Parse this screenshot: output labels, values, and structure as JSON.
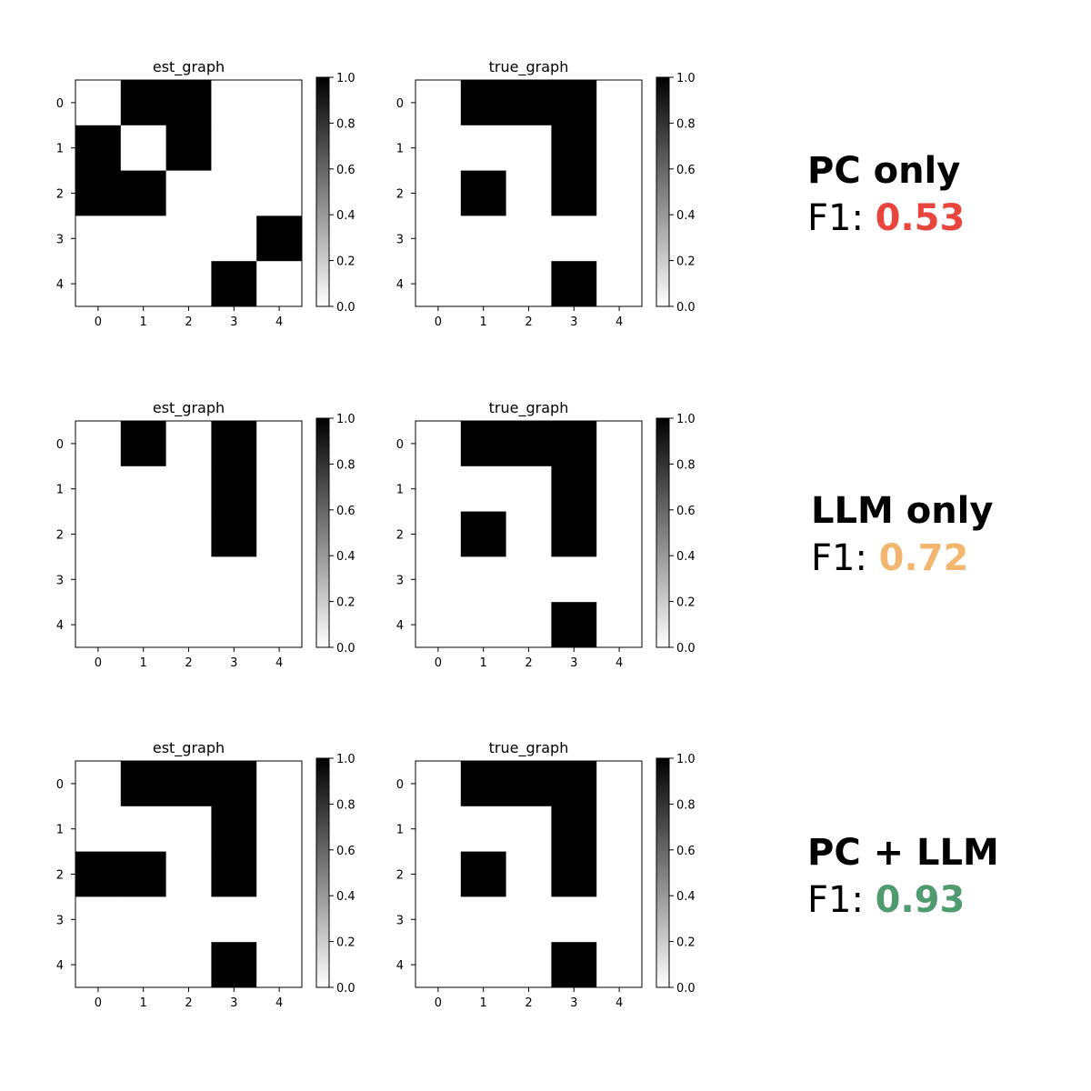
{
  "chart_data": [
    {
      "type": "heatmap",
      "title": "est_graph",
      "row": "PC only",
      "x_ticks": [
        "0",
        "1",
        "2",
        "3",
        "4"
      ],
      "y_ticks": [
        "0",
        "1",
        "2",
        "3",
        "4"
      ],
      "values": [
        [
          0,
          1,
          1,
          0,
          0
        ],
        [
          1,
          0,
          1,
          0,
          0
        ],
        [
          1,
          1,
          0,
          0,
          0
        ],
        [
          0,
          0,
          0,
          0,
          1
        ],
        [
          0,
          0,
          0,
          1,
          0
        ]
      ],
      "colorbar": {
        "min": 0.0,
        "max": 1.0,
        "ticks": [
          "0.0",
          "0.2",
          "0.4",
          "0.6",
          "0.8",
          "1.0"
        ],
        "colormap": "gray_r"
      }
    },
    {
      "type": "heatmap",
      "title": "true_graph",
      "row": "PC only",
      "x_ticks": [
        "0",
        "1",
        "2",
        "3",
        "4"
      ],
      "y_ticks": [
        "0",
        "1",
        "2",
        "3",
        "4"
      ],
      "values": [
        [
          0,
          1,
          1,
          1,
          0
        ],
        [
          0,
          0,
          0,
          1,
          0
        ],
        [
          0,
          1,
          0,
          1,
          0
        ],
        [
          0,
          0,
          0,
          0,
          0
        ],
        [
          0,
          0,
          0,
          1,
          0
        ]
      ],
      "colorbar": {
        "min": 0.0,
        "max": 1.0,
        "ticks": [
          "0.0",
          "0.2",
          "0.4",
          "0.6",
          "0.8",
          "1.0"
        ],
        "colormap": "gray_r"
      }
    },
    {
      "type": "heatmap",
      "title": "est_graph",
      "row": "LLM only",
      "x_ticks": [
        "0",
        "1",
        "2",
        "3",
        "4"
      ],
      "y_ticks": [
        "0",
        "1",
        "2",
        "3",
        "4"
      ],
      "values": [
        [
          0,
          1,
          0,
          1,
          0
        ],
        [
          0,
          0,
          0,
          1,
          0
        ],
        [
          0,
          0,
          0,
          1,
          0
        ],
        [
          0,
          0,
          0,
          0,
          0
        ],
        [
          0,
          0,
          0,
          0,
          0
        ]
      ],
      "colorbar": {
        "min": 0.0,
        "max": 1.0,
        "ticks": [
          "0.0",
          "0.2",
          "0.4",
          "0.6",
          "0.8",
          "1.0"
        ],
        "colormap": "gray_r"
      }
    },
    {
      "type": "heatmap",
      "title": "true_graph",
      "row": "LLM only",
      "x_ticks": [
        "0",
        "1",
        "2",
        "3",
        "4"
      ],
      "y_ticks": [
        "0",
        "1",
        "2",
        "3",
        "4"
      ],
      "values": [
        [
          0,
          1,
          1,
          1,
          0
        ],
        [
          0,
          0,
          0,
          1,
          0
        ],
        [
          0,
          1,
          0,
          1,
          0
        ],
        [
          0,
          0,
          0,
          0,
          0
        ],
        [
          0,
          0,
          0,
          1,
          0
        ]
      ],
      "colorbar": {
        "min": 0.0,
        "max": 1.0,
        "ticks": [
          "0.0",
          "0.2",
          "0.4",
          "0.6",
          "0.8",
          "1.0"
        ],
        "colormap": "gray_r"
      }
    },
    {
      "type": "heatmap",
      "title": "est_graph",
      "row": "PC + LLM",
      "x_ticks": [
        "0",
        "1",
        "2",
        "3",
        "4"
      ],
      "y_ticks": [
        "0",
        "1",
        "2",
        "3",
        "4"
      ],
      "values": [
        [
          0,
          1,
          1,
          1,
          0
        ],
        [
          0,
          0,
          0,
          1,
          0
        ],
        [
          1,
          1,
          0,
          1,
          0
        ],
        [
          0,
          0,
          0,
          0,
          0
        ],
        [
          0,
          0,
          0,
          1,
          0
        ]
      ],
      "colorbar": {
        "min": 0.0,
        "max": 1.0,
        "ticks": [
          "0.0",
          "0.2",
          "0.4",
          "0.6",
          "0.8",
          "1.0"
        ],
        "colormap": "gray_r"
      }
    },
    {
      "type": "heatmap",
      "title": "true_graph",
      "row": "PC + LLM",
      "x_ticks": [
        "0",
        "1",
        "2",
        "3",
        "4"
      ],
      "y_ticks": [
        "0",
        "1",
        "2",
        "3",
        "4"
      ],
      "values": [
        [
          0,
          1,
          1,
          1,
          0
        ],
        [
          0,
          0,
          0,
          1,
          0
        ],
        [
          0,
          1,
          0,
          1,
          0
        ],
        [
          0,
          0,
          0,
          0,
          0
        ],
        [
          0,
          0,
          0,
          1,
          0
        ]
      ],
      "colorbar": {
        "min": 0.0,
        "max": 1.0,
        "ticks": [
          "0.0",
          "0.2",
          "0.4",
          "0.6",
          "0.8",
          "1.0"
        ],
        "colormap": "gray_r"
      }
    }
  ],
  "methods": [
    {
      "name": "PC only",
      "f1_prefix": "F1: ",
      "f1_value": "0.53",
      "color": "#e8453c"
    },
    {
      "name": "LLM only",
      "f1_prefix": "F1: ",
      "f1_value": "0.72",
      "color": "#f2b66e"
    },
    {
      "name": "PC + LLM",
      "f1_prefix": "F1: ",
      "f1_value": "0.93",
      "color": "#4f9a6e"
    }
  ]
}
